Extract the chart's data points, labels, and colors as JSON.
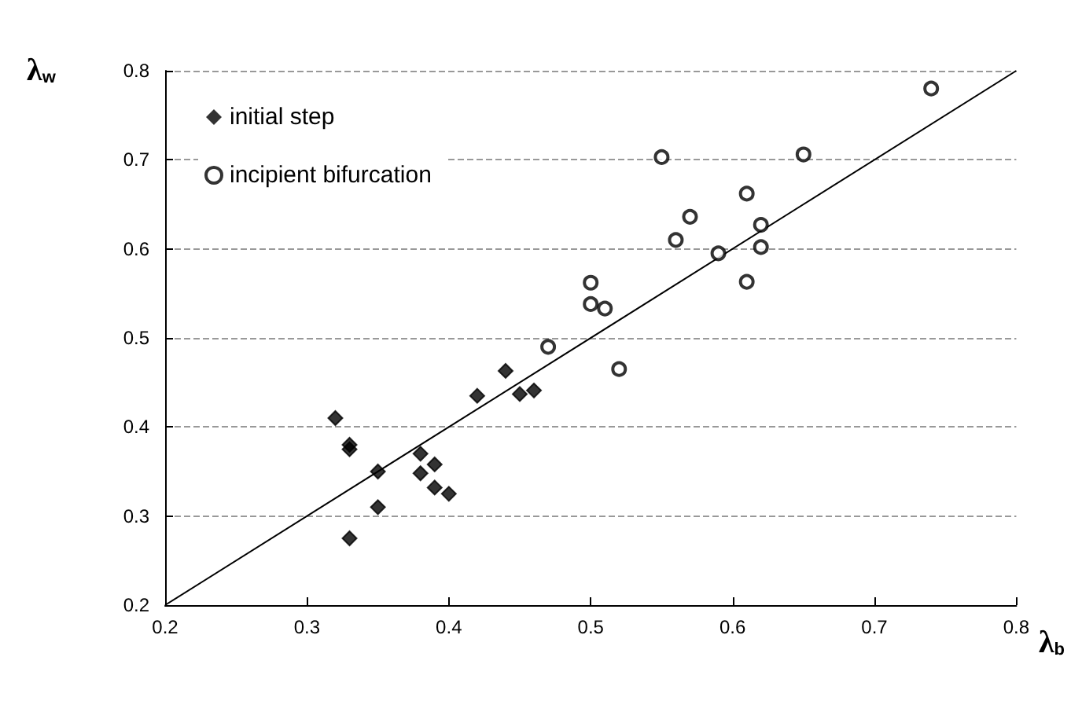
{
  "chart_data": {
    "type": "scatter",
    "xlabel": "λ$_{b}$",
    "ylabel": "λ$_{w}$",
    "xlim": [
      0.2,
      0.8
    ],
    "xticks": [
      0.2,
      0.3,
      0.4,
      0.5,
      0.6,
      0.7,
      0.8
    ],
    "ylim": [
      0.2,
      0.8
    ],
    "yticks": [
      0.2,
      0.3,
      0.4,
      0.5,
      0.6,
      0.7,
      0.8
    ],
    "grid": "y",
    "legend": "top left",
    "series": [
      {
        "name": "initial step",
        "color": "#000000",
        "marker": "diamond",
        "x": [
          0.32,
          0.33,
          0.33,
          0.35,
          0.35,
          0.33,
          0.38,
          0.38,
          0.39,
          0.39,
          0.4,
          0.42,
          0.44,
          0.45,
          0.46
        ],
        "values": [
          0.41,
          0.38,
          0.375,
          0.35,
          0.31,
          0.275,
          0.37,
          0.348,
          0.358,
          0.332,
          0.325,
          0.435,
          0.463,
          0.437,
          0.441
        ]
      },
      {
        "name": "incipient bifurcation",
        "color": "#000000",
        "marker": "circle",
        "x": [
          0.47,
          0.5,
          0.5,
          0.51,
          0.52,
          0.55,
          0.56,
          0.57,
          0.59,
          0.61,
          0.61,
          0.62,
          0.62,
          0.65,
          0.74
        ],
        "values": [
          0.49,
          0.562,
          0.538,
          0.533,
          0.465,
          0.703,
          0.61,
          0.636,
          0.595,
          0.662,
          0.563,
          0.627,
          0.602,
          0.706,
          0.78
        ]
      },
      {
        "type": "line",
        "color": "#000000",
        "marker": "none",
        "line_style": "solid",
        "x": [
          0.2,
          0.8
        ],
        "values": [
          0.2,
          0.8
        ]
      }
    ]
  }
}
